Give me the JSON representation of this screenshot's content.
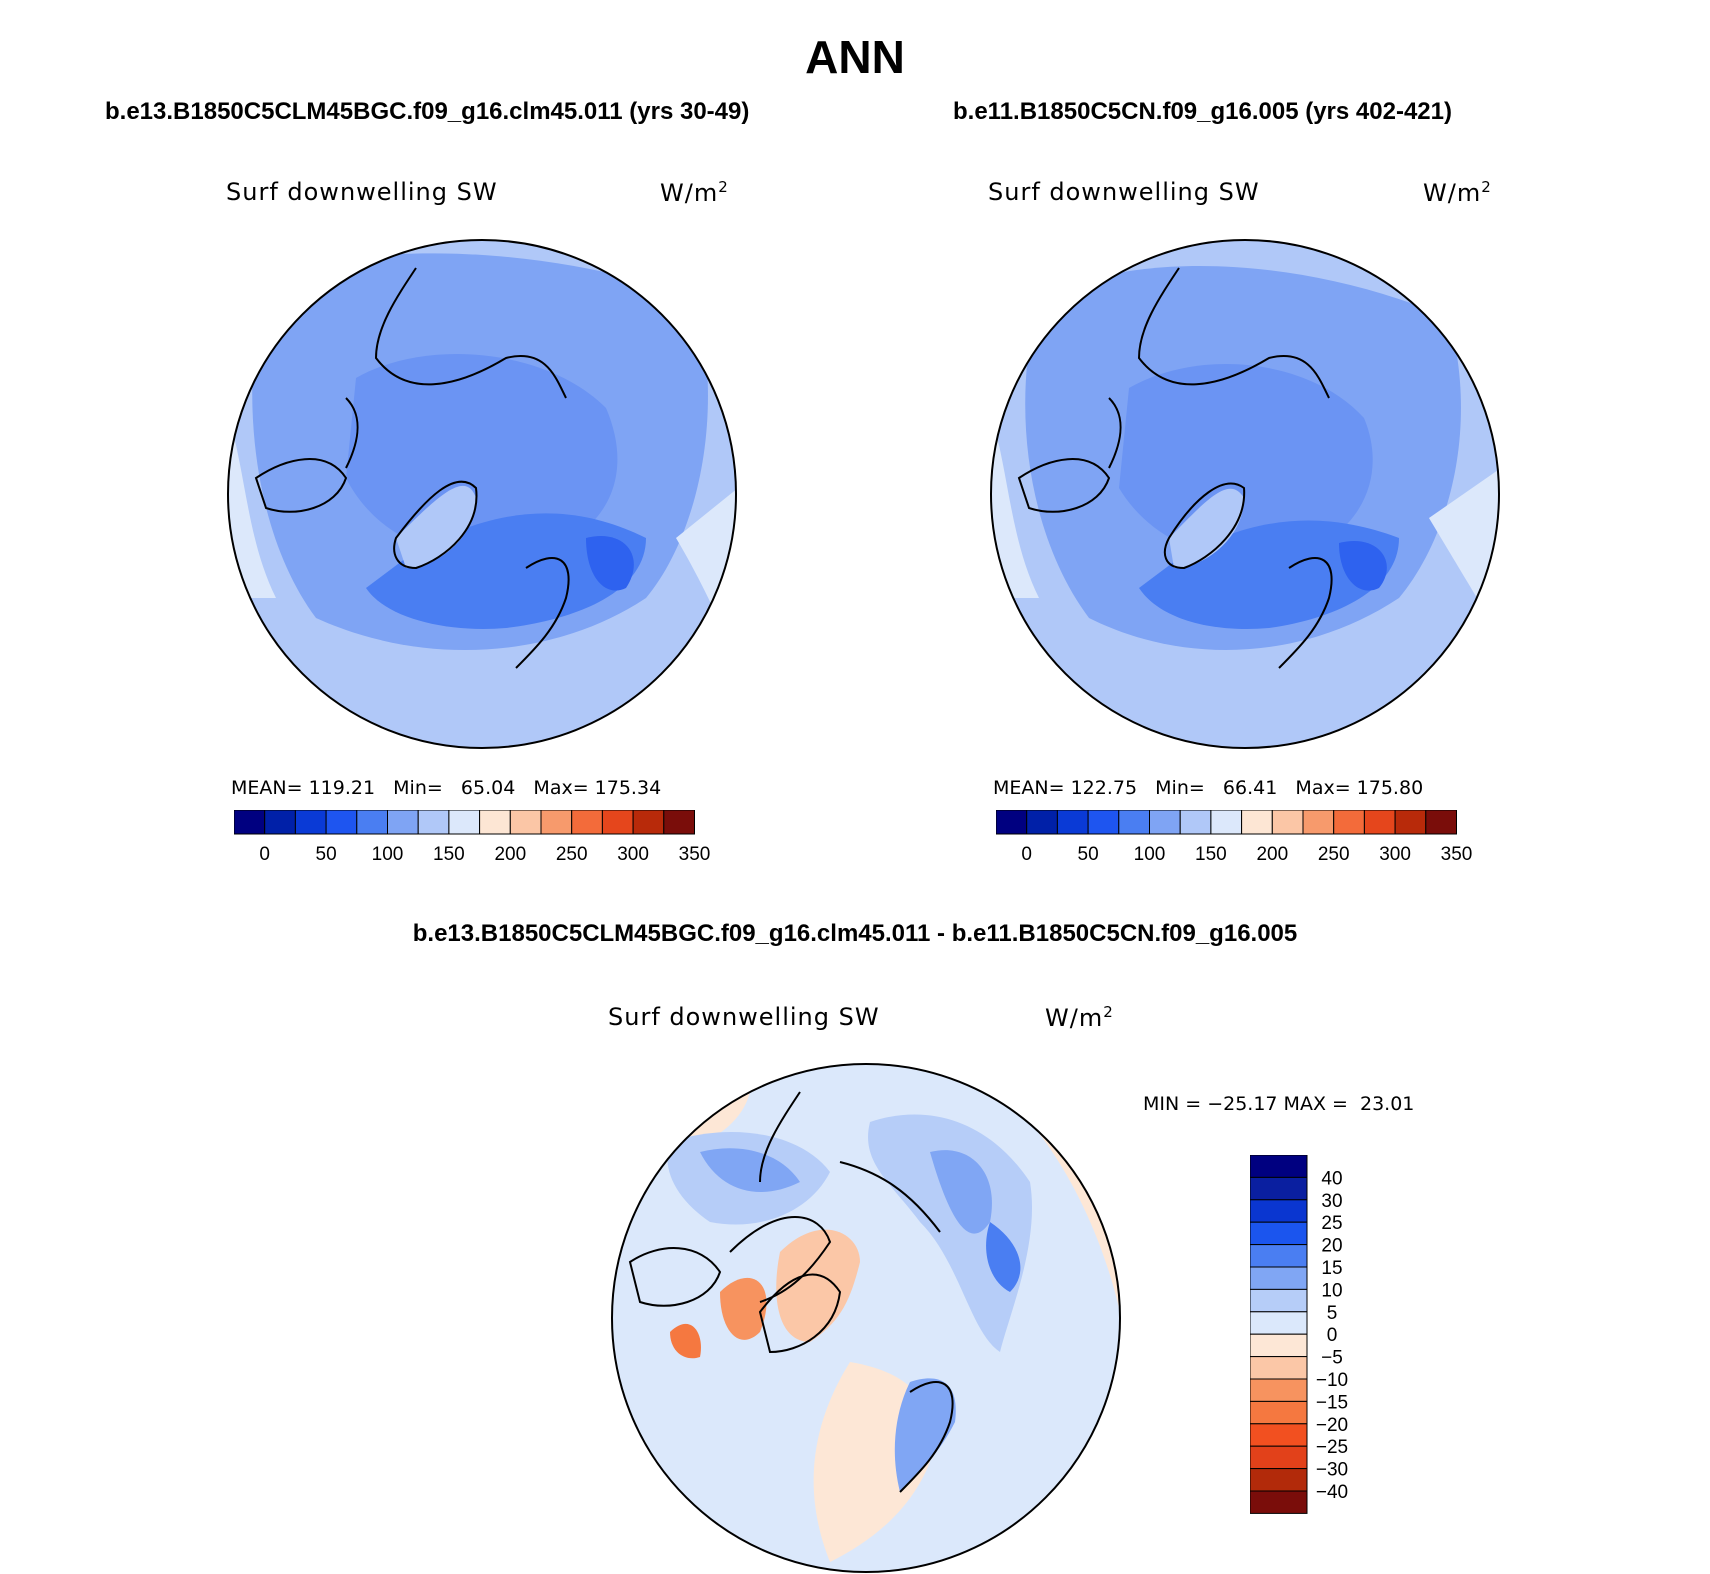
{
  "title": "ANN",
  "left_panel": {
    "case": "b.e13.B1850C5CLM45BGC.f09_g16.clm45.011 (yrs 30-49)",
    "var": "Surf downwelling SW",
    "units": "W/m",
    "units_sup": "2",
    "stats": "MEAN= 119.21   Min=   65.04   Max= 175.34"
  },
  "right_panel": {
    "case": "b.e11.B1850C5CN.f09_g16.005 (yrs 402-421)",
    "var": "Surf downwelling SW",
    "units": "W/m",
    "units_sup": "2",
    "stats": "MEAN= 122.75   Min=   66.41   Max= 175.80"
  },
  "diff_panel": {
    "case": "b.e13.B1850C5CLM45BGC.f09_g16.clm45.011 - b.e11.B1850C5CN.f09_g16.005",
    "var": "Surf downwelling SW",
    "units": "W/m",
    "units_sup": "2",
    "stats": "MIN = −25.17 MAX =  23.01"
  },
  "colorbar_abs": {
    "colors": [
      "#000080",
      "#0020a8",
      "#0a3ad6",
      "#1e55f0",
      "#4a7ef2",
      "#7fa4f4",
      "#b0c8f8",
      "#dce8fb",
      "#fde6d4",
      "#fbc6a6",
      "#f79a6c",
      "#f36b3a",
      "#e5461c",
      "#b82a0a",
      "#7a0d0a"
    ],
    "labels": [
      "0",
      "50",
      "100",
      "150",
      "200",
      "250",
      "300",
      "350"
    ]
  },
  "colorbar_diff": {
    "colors": [
      "#000080",
      "#0a1fa0",
      "#0a36d0",
      "#1b55ee",
      "#4a7ef2",
      "#80a6f4",
      "#b6cdf8",
      "#dbe8fb",
      "#fde7d6",
      "#fbc7a7",
      "#f7935f",
      "#f57840",
      "#f25020",
      "#e2411a",
      "#b22a0a",
      "#7a0d0a"
    ],
    "labels": [
      "40",
      "30",
      "25",
      "20",
      "15",
      "10",
      "5",
      "0",
      "−5",
      "−10",
      "−15",
      "−20",
      "−25",
      "−30",
      "−40"
    ]
  }
}
